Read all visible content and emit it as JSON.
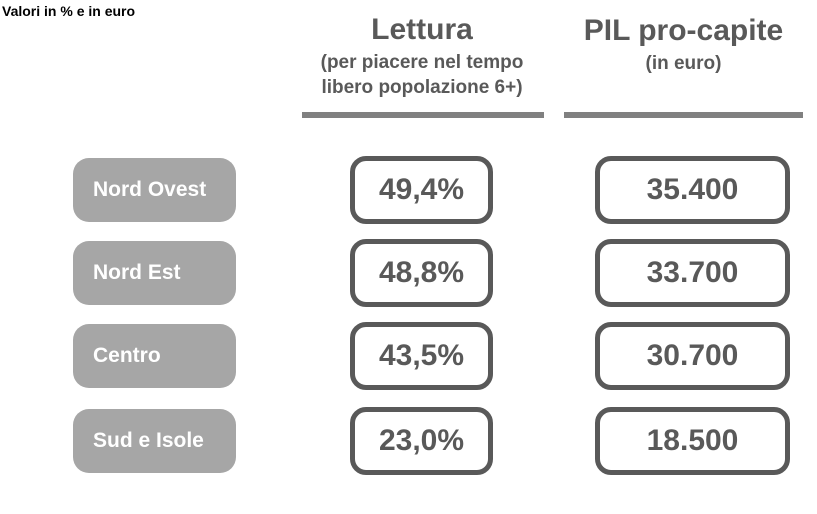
{
  "title": "Valori in % e in euro",
  "columns": {
    "lettura": {
      "title": "Lettura",
      "subtitle": "(per piacere nel tempo libero popolazione 6+)"
    },
    "pil": {
      "title": "PIL pro-capite",
      "subtitle": "(in euro)"
    }
  },
  "rows": [
    {
      "region": "Nord Ovest",
      "lettura": "49,4%",
      "pil": "35.400"
    },
    {
      "region": "Nord Est",
      "lettura": "48,8%",
      "pil": "33.700"
    },
    {
      "region": "Centro",
      "lettura": "43,5%",
      "pil": "30.700"
    },
    {
      "region": "Sud e Isole",
      "lettura": "23,0%",
      "pil": "18.500"
    }
  ],
  "chart_data": {
    "type": "table",
    "title": "Valori in % e in euro",
    "categories": [
      "Nord Ovest",
      "Nord Est",
      "Centro",
      "Sud e Isole"
    ],
    "series": [
      {
        "name": "Lettura (per piacere nel tempo libero popolazione 6+)",
        "unit": "%",
        "values": [
          49.4,
          48.8,
          43.5,
          23.0
        ],
        "labels": [
          "49,4%",
          "48,8%",
          "43,5%",
          "23,0%"
        ]
      },
      {
        "name": "PIL pro-capite (in euro)",
        "unit": "euro",
        "values": [
          35400,
          33700,
          30700,
          18500
        ],
        "labels": [
          "35.400",
          "33.700",
          "30.700",
          "18.500"
        ]
      }
    ],
    "legend_position": "none",
    "grid": false
  },
  "colors": {
    "title_text": "#000000",
    "header_text": "#595959",
    "underline_bar": "#808080",
    "region_box_bg": "#a6a6a6",
    "region_box_text": "#ffffff",
    "value_box_border": "#595959",
    "value_box_text": "#595959",
    "background": "#ffffff"
  }
}
